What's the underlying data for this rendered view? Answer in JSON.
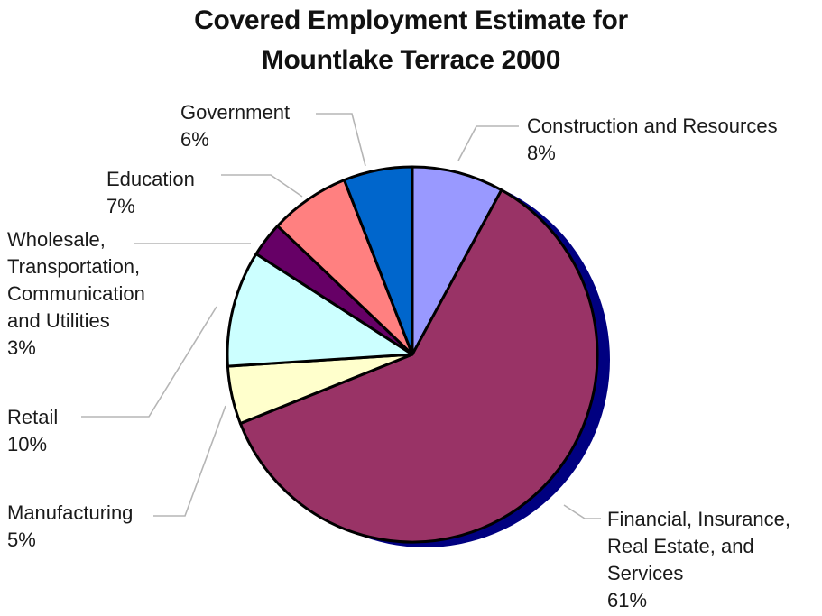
{
  "chart_data": {
    "type": "pie",
    "title_lines": [
      "Covered Employment Estimate for",
      "Mountlake Terrace 2000"
    ],
    "slices": [
      {
        "lines": [
          "Construction and Resources",
          "8%"
        ],
        "value": 8,
        "color": "#9999ff"
      },
      {
        "lines": [
          "Financial, Insurance,",
          "Real Estate, and",
          "Services",
          "61%"
        ],
        "value": 61,
        "color": "#993366"
      },
      {
        "lines": [
          "Manufacturing",
          "5%"
        ],
        "value": 5,
        "color": "#ffffcc"
      },
      {
        "lines": [
          "Retail",
          "10%"
        ],
        "value": 10,
        "color": "#ccffff"
      },
      {
        "lines": [
          "Wholesale,",
          "Transportation,",
          "Communication",
          "and Utilities",
          "3%"
        ],
        "value": 3,
        "color": "#660066"
      },
      {
        "lines": [
          "Education",
          "7%"
        ],
        "value": 7,
        "color": "#ff8080"
      },
      {
        "lines": [
          "Government",
          "6%"
        ],
        "value": 6,
        "color": "#0066cc"
      }
    ],
    "shadow_color": "#000080",
    "legend": "none"
  }
}
